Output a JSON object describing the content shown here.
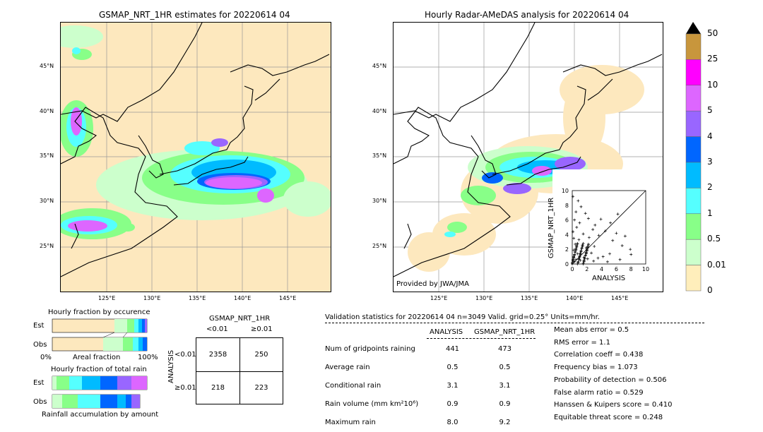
{
  "left_map": {
    "title": "GSMAP_NRT_1HR estimates for 20220614 04",
    "lat_labels": [
      "45°N",
      "40°N",
      "35°N",
      "30°N",
      "25°N"
    ],
    "lon_labels": [
      "125°E",
      "130°E",
      "135°E",
      "140°E",
      "145°E"
    ]
  },
  "right_map": {
    "title": "Hourly Radar-AMeDAS analysis for 20220614 04",
    "credit": "Provided by JWA/JMA",
    "lat_labels": [
      "45°N",
      "40°N",
      "35°N",
      "30°N",
      "25°N"
    ],
    "lon_labels": [
      "125°E",
      "130°E",
      "135°E",
      "140°E",
      "145°E"
    ]
  },
  "colorbar": {
    "labels": [
      "50",
      "25",
      "10",
      "5",
      "4",
      "3",
      "2",
      "1",
      "0.5",
      "0.01",
      "0"
    ],
    "colors": [
      "#c8963c",
      "#ff00ff",
      "#dd66ff",
      "#9966ff",
      "#0066ff",
      "#00bbff",
      "#55ffff",
      "#88ff88",
      "#ccffcc",
      "#ffeebb"
    ]
  },
  "scatter": {
    "xlabel": "ANALYSIS",
    "ylabel": "GSMAP_NRT_1HR",
    "ticks": [
      "0",
      "2",
      "4",
      "6",
      "8",
      "10"
    ]
  },
  "fraction_charts": {
    "occurrence_title": "Hourly fraction by occurence",
    "total_title": "Hourly fraction of total rain",
    "est_label": "Est",
    "obs_label": "Obs",
    "axis_left": "0%",
    "axis_mid": "Areal fraction",
    "axis_right": "100%",
    "footer": "Rainfall accumulation by amount"
  },
  "contingency": {
    "title": "GSMAP_NRT_1HR",
    "col_lt": "<0.01",
    "col_ge": "≥0.01",
    "row_axis": "ANALYSIS",
    "row_lt": "<0.01",
    "row_ge": "≥0.01",
    "cells": [
      "2358",
      "250",
      "218",
      "223"
    ]
  },
  "validation": {
    "header": "Validation statistics for 20220614 04  n=3049 Valid. grid=0.25° Units=mm/hr.",
    "col_analysis": "ANALYSIS",
    "col_gsmap": "GSMAP_NRT_1HR",
    "rows": [
      {
        "label": "Num of gridpoints raining",
        "analysis": "441",
        "gsmap": "473"
      },
      {
        "label": "Average rain",
        "analysis": "0.5",
        "gsmap": "0.5"
      },
      {
        "label": "Conditional rain",
        "analysis": "3.1",
        "gsmap": "3.1"
      },
      {
        "label": "Rain volume (mm km²10⁶)",
        "analysis": "0.9",
        "gsmap": "0.9"
      },
      {
        "label": "Maximum rain",
        "analysis": "8.0",
        "gsmap": "9.2"
      }
    ],
    "scores": [
      "Mean abs error =    0.5",
      "RMS error =    1.1",
      "Correlation coeff =  0.438",
      "Frequency bias =  1.073",
      "Probability of detection =  0.506",
      "False alarm ratio =  0.529",
      "Hanssen & Kuipers score =  0.410",
      "Equitable threat score =  0.248"
    ]
  },
  "chart_data": [
    {
      "type": "scatter",
      "title": "",
      "xlabel": "ANALYSIS",
      "ylabel": "GSMAP_NRT_1HR",
      "xlim": [
        0,
        10
      ],
      "ylim": [
        0,
        10
      ],
      "note_points": [
        [
          0.1,
          9.2
        ],
        [
          0.8,
          8.6
        ],
        [
          1.2,
          7.8
        ],
        [
          0.5,
          7.1
        ],
        [
          1.8,
          6.9
        ],
        [
          2.2,
          6.2
        ],
        [
          0.3,
          6.0
        ],
        [
          1.0,
          5.6
        ],
        [
          3.1,
          5.3
        ],
        [
          0.6,
          5.0
        ],
        [
          2.8,
          4.7
        ],
        [
          6.2,
          6.8
        ],
        [
          4.5,
          4.5
        ],
        [
          3.6,
          3.9
        ],
        [
          5.5,
          3.2
        ],
        [
          7.9,
          2.0
        ],
        [
          6.8,
          2.5
        ],
        [
          5.1,
          1.4
        ],
        [
          4.2,
          1.0
        ],
        [
          3.0,
          2.4
        ],
        [
          2.3,
          3.6
        ],
        [
          1.5,
          4.1
        ],
        [
          0.9,
          3.3
        ],
        [
          0.4,
          2.7
        ],
        [
          1.9,
          2.2
        ],
        [
          2.6,
          1.5
        ],
        [
          3.5,
          0.8
        ],
        [
          1.2,
          1.8
        ],
        [
          0.7,
          1.4
        ],
        [
          0.2,
          1.9
        ],
        [
          1.6,
          0.9
        ],
        [
          2.9,
          0.4
        ],
        [
          4.8,
          0.3
        ],
        [
          0.5,
          0.6
        ],
        [
          0.3,
          0.3
        ],
        [
          1.1,
          0.5
        ],
        [
          0.8,
          0.2
        ],
        [
          2.1,
          0.7
        ],
        [
          0.1,
          4.4
        ],
        [
          0.2,
          3.5
        ],
        [
          6.0,
          4.2
        ],
        [
          5.2,
          5.6
        ],
        [
          7.2,
          3.8
        ],
        [
          3.9,
          6.1
        ],
        [
          8.0,
          1.3
        ],
        [
          6.5,
          0.6
        ]
      ]
    },
    {
      "type": "table",
      "title": "GSMAP_NRT_1HR",
      "columns": [
        "<0.01",
        "≥0.01"
      ],
      "rows": [
        "<0.01",
        "≥0.01"
      ],
      "values": [
        [
          2358,
          250
        ],
        [
          218,
          223
        ]
      ]
    }
  ]
}
